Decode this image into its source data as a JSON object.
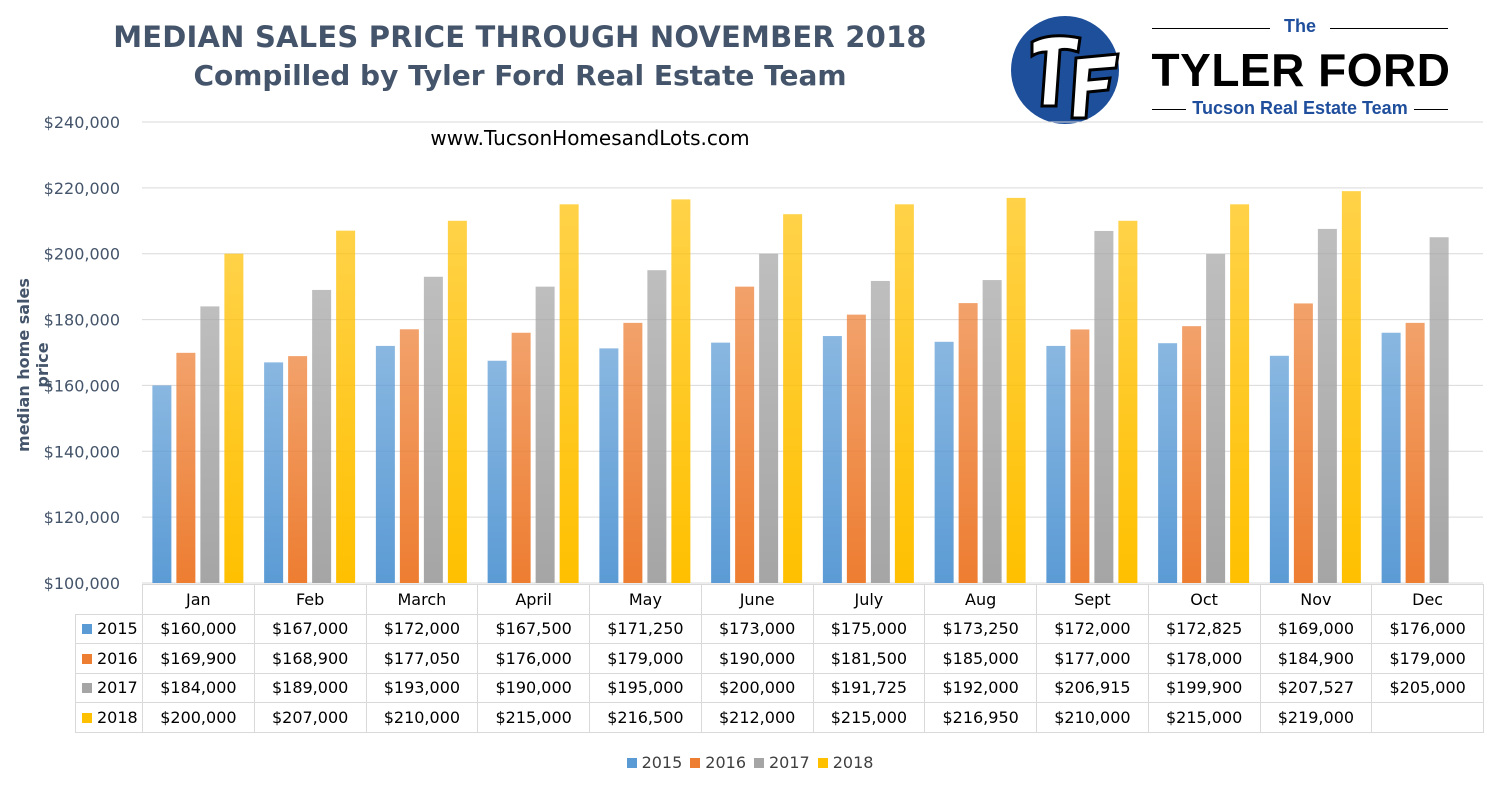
{
  "title": "MEDIAN SALES PRICE THROUGH NOVEMBER 2018",
  "subtitle": "Compilled by Tyler Ford Real Estate Team",
  "website": "www.TucsonHomesandLots.com",
  "logo": {
    "monogram": "TF",
    "the": "The",
    "name": "TYLER FORD",
    "tagline": "Tucson Real Estate Team"
  },
  "chart_data": {
    "type": "bar",
    "ylabel": "median home sales price",
    "ylim": [
      100000,
      240000
    ],
    "yticks": [
      100000,
      120000,
      140000,
      160000,
      180000,
      200000,
      220000,
      240000
    ],
    "ytick_labels": [
      "$100,000",
      "$120,000",
      "$140,000",
      "$160,000",
      "$180,000",
      "$200,000",
      "$220,000",
      "$240,000"
    ],
    "grid": true,
    "legend_position": "bottom",
    "categories": [
      "Jan",
      "Feb",
      "March",
      "April",
      "May",
      "June",
      "July",
      "Aug",
      "Sept",
      "Oct",
      "Nov",
      "Dec"
    ],
    "series": [
      {
        "name": "2015",
        "color": "#5b9bd5",
        "values": [
          160000,
          167000,
          172000,
          167500,
          171250,
          173000,
          175000,
          173250,
          172000,
          172825,
          169000,
          176000
        ],
        "labels": [
          "$160,000",
          "$167,000",
          "$172,000",
          "$167,500",
          "$171,250",
          "$173,000",
          "$175,000",
          "$173,250",
          "$172,000",
          "$172,825",
          "$169,000",
          "$176,000"
        ]
      },
      {
        "name": "2016",
        "color": "#ed7d31",
        "values": [
          169900,
          168900,
          177050,
          176000,
          179000,
          190000,
          181500,
          185000,
          177000,
          178000,
          184900,
          179000
        ],
        "labels": [
          "$169,900",
          "$168,900",
          "$177,050",
          "$176,000",
          "$179,000",
          "$190,000",
          "$181,500",
          "$185,000",
          "$177,000",
          "$178,000",
          "$184,900",
          "$179,000"
        ]
      },
      {
        "name": "2017",
        "color": "#a5a5a5",
        "values": [
          184000,
          189000,
          193000,
          190000,
          195000,
          200000,
          191725,
          192000,
          206915,
          199900,
          207527,
          205000
        ],
        "labels": [
          "$184,000",
          "$189,000",
          "$193,000",
          "$190,000",
          "$195,000",
          "$200,000",
          "$191,725",
          "$192,000",
          "$206,915",
          "$199,900",
          "$207,527",
          "$205,000"
        ]
      },
      {
        "name": "2018",
        "color": "#ffc000",
        "values": [
          200000,
          207000,
          210000,
          215000,
          216500,
          212000,
          215000,
          216950,
          210000,
          215000,
          219000,
          null
        ],
        "labels": [
          "$200,000",
          "$207,000",
          "$210,000",
          "$215,000",
          "$216,500",
          "$212,000",
          "$215,000",
          "$216,950",
          "$210,000",
          "$215,000",
          "$219,000",
          ""
        ]
      }
    ]
  }
}
